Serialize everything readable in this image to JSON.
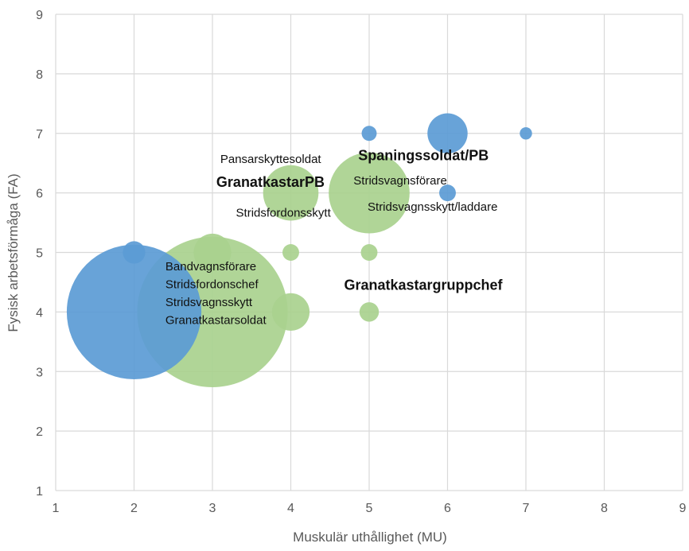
{
  "chart_data": {
    "type": "bubble",
    "title": "",
    "xlabel": "Muskulär uthållighet (MU)",
    "ylabel": "Fysisk arbetsförmåga (FA)",
    "xlim": [
      1,
      9
    ],
    "ylim": [
      1,
      9
    ],
    "x_ticks": [
      "1",
      "2",
      "3",
      "4",
      "5",
      "6",
      "7",
      "8",
      "9"
    ],
    "y_ticks": [
      "1",
      "2",
      "3",
      "4",
      "5",
      "6",
      "7",
      "8",
      "9"
    ],
    "grid": true,
    "legend": "none",
    "colors": {
      "blue": "#5b9bd5",
      "green": "#a9d18e"
    },
    "series": [
      {
        "color": "blue",
        "points": [
          {
            "x": 2,
            "y": 4,
            "size": 36
          },
          {
            "x": 2,
            "y": 5,
            "size": 1
          },
          {
            "x": 5,
            "y": 7,
            "size": 0.45
          },
          {
            "x": 6,
            "y": 7,
            "size": 3.2
          },
          {
            "x": 6,
            "y": 6,
            "size": 0.55
          },
          {
            "x": 7,
            "y": 7,
            "size": 0.3
          }
        ]
      },
      {
        "color": "green",
        "points": [
          {
            "x": 3,
            "y": 4,
            "size": 45
          },
          {
            "x": 3,
            "y": 5,
            "size": 2.8
          },
          {
            "x": 4,
            "y": 6,
            "size": 6.1
          },
          {
            "x": 4,
            "y": 5,
            "size": 0.55
          },
          {
            "x": 4,
            "y": 4,
            "size": 2.8
          },
          {
            "x": 5,
            "y": 6,
            "size": 13
          },
          {
            "x": 5,
            "y": 5,
            "size": 0.55
          },
          {
            "x": 5,
            "y": 4,
            "size": 0.75
          }
        ]
      }
    ],
    "annotations": [
      {
        "text": "Pansarskyttesoldat",
        "x": 3.1,
        "y": 6.5,
        "bold": false
      },
      {
        "text": "GranatkastarPB",
        "x": 3.05,
        "y": 6.1,
        "bold": true
      },
      {
        "text": "Stridsfordonsskytt",
        "x": 3.3,
        "y": 5.6,
        "bold": false
      },
      {
        "text": "Spaningssoldat/PB",
        "x": 4.86,
        "y": 6.55,
        "bold": true
      },
      {
        "text": "Stridsvagnsförare",
        "x": 4.8,
        "y": 6.14,
        "bold": false
      },
      {
        "text": "Stridsvagnsskytt/laddare",
        "x": 4.98,
        "y": 5.7,
        "bold": false
      },
      {
        "text": "Granatkastargruppchef",
        "x": 4.68,
        "y": 4.37,
        "bold": true
      },
      {
        "text": "Bandvagnsförare",
        "x": 2.4,
        "y": 4.7,
        "bold": false
      },
      {
        "text": "Stridsfordonschef",
        "x": 2.4,
        "y": 4.4,
        "bold": false
      },
      {
        "text": "Stridsvagnsskytt",
        "x": 2.4,
        "y": 4.1,
        "bold": false
      },
      {
        "text": "Granatkastarsoldat",
        "x": 2.4,
        "y": 3.8,
        "bold": false
      }
    ]
  }
}
